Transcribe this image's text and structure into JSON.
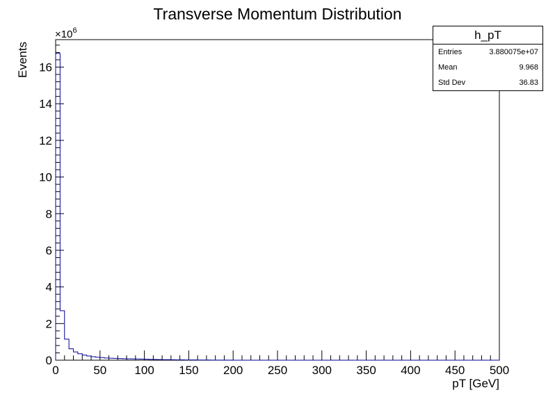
{
  "colors": {
    "line": "#000099",
    "axis": "#000000",
    "background": "#ffffff"
  },
  "chart_data": {
    "type": "histogram",
    "title": "Transverse Momentum Distribution",
    "xlabel": "pT [GeV]",
    "ylabel": "Events",
    "y_exponent_label": "×10",
    "y_exponent": "6",
    "xlim": [
      0,
      500
    ],
    "ylim": [
      0,
      17.5
    ],
    "y_multiplier": 1000000,
    "bin_width": 5,
    "x_ticks": [
      0,
      50,
      100,
      150,
      200,
      250,
      300,
      350,
      400,
      450,
      500
    ],
    "y_ticks": [
      0,
      2,
      4,
      6,
      8,
      10,
      12,
      14,
      16
    ],
    "grid": false,
    "values": [
      16.75,
      2.7,
      1.15,
      0.62,
      0.45,
      0.35,
      0.28,
      0.23,
      0.19,
      0.16,
      0.14,
      0.12,
      0.11,
      0.1,
      0.09,
      0.08,
      0.075,
      0.07,
      0.065,
      0.06,
      0.05,
      0.045,
      0.04,
      0.035,
      0.03,
      0.027,
      0.024,
      0.021,
      0.018,
      0.016,
      0.014,
      0.012,
      0.01,
      0.009,
      0.008,
      0.007,
      0.006,
      0.005,
      0.004,
      0.003,
      0.002,
      0.002,
      0.001,
      0.001,
      0,
      0,
      0,
      0,
      0,
      0,
      0,
      0,
      0,
      0,
      0,
      0,
      0,
      0,
      0,
      0,
      0,
      0,
      0,
      0,
      0,
      0,
      0,
      0,
      0,
      0,
      0,
      0,
      0,
      0,
      0,
      0,
      0,
      0,
      0,
      0,
      0,
      0,
      0,
      0,
      0,
      0,
      0,
      0,
      0,
      0,
      0,
      0,
      0,
      0,
      0,
      0,
      0,
      0,
      0,
      0
    ],
    "stats": {
      "name": "h_pT",
      "entries_label": "Entries",
      "entries": "3.880075e+07",
      "mean_label": "Mean",
      "mean": "9.968",
      "stddev_label": "Std Dev",
      "stddev": "36.83"
    }
  }
}
